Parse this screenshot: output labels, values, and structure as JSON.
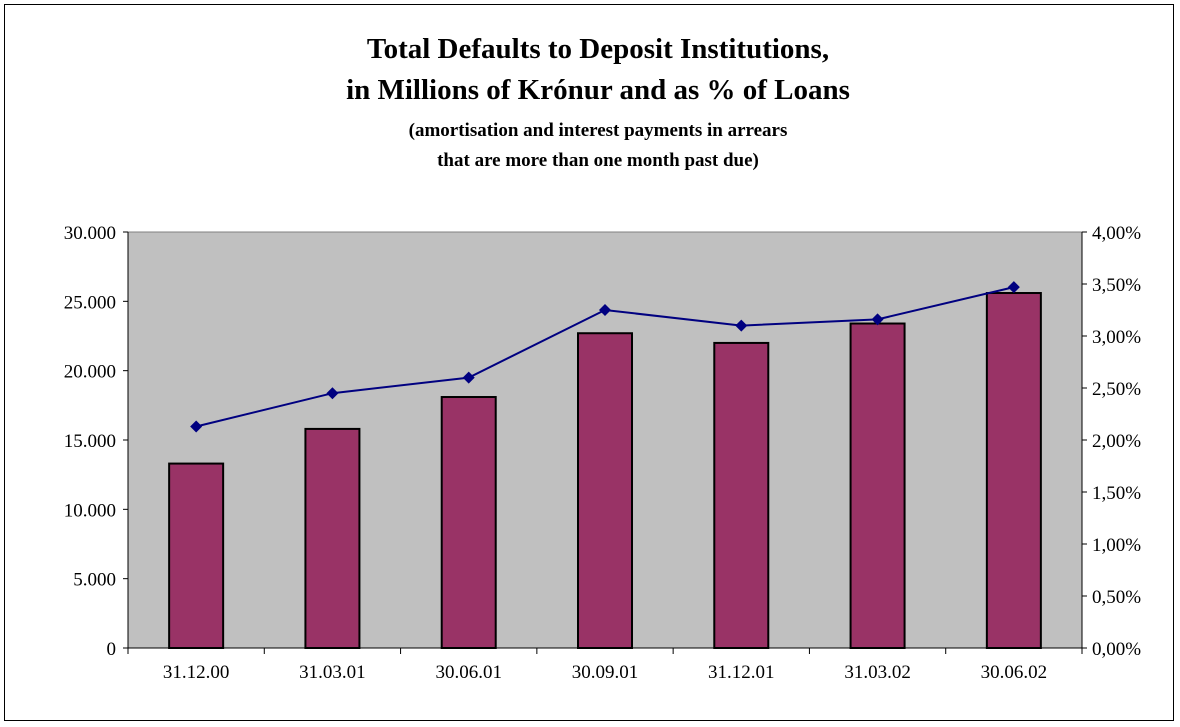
{
  "chart_data": {
    "type": "bar",
    "title": "Total Defaults to Deposit Institutions,",
    "title_line2": "in Millions of Krónur and as % of Loans",
    "subtitle": "(amortisation and interest payments in arrears",
    "subtitle_line2": "that are more than one month past due)",
    "categories": [
      "31.12.00",
      "31.03.01",
      "30.06.01",
      "30.09.01",
      "31.12.01",
      "31.03.02",
      "30.06.02"
    ],
    "series": [
      {
        "type": "bar",
        "axis": "left",
        "values": [
          13300,
          15800,
          18100,
          22700,
          22000,
          23400,
          25600
        ]
      },
      {
        "type": "line",
        "axis": "right",
        "values": [
          2.13,
          2.45,
          2.6,
          3.25,
          3.1,
          3.16,
          3.47
        ]
      }
    ],
    "y_left": {
      "ylim": [
        0,
        30000
      ],
      "ticks": [
        "0",
        "5.000",
        "10.000",
        "15.000",
        "20.000",
        "25.000",
        "30.000"
      ]
    },
    "y_right": {
      "ylim": [
        0,
        4
      ],
      "ticks": [
        "0,00%",
        "0,50%",
        "1,00%",
        "1,50%",
        "2,00%",
        "2,50%",
        "3,00%",
        "3,50%",
        "4,00%"
      ]
    },
    "grid": false,
    "legend": "none",
    "colors": {
      "bar": "#993366",
      "line": "#000080",
      "plot_bg": "#c0c0c0"
    }
  }
}
